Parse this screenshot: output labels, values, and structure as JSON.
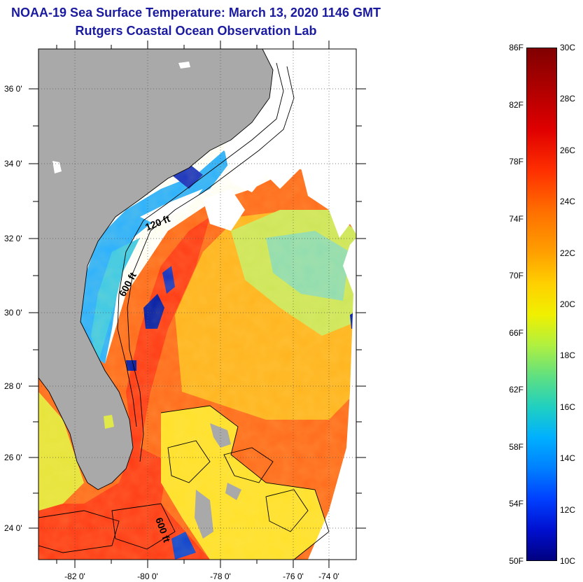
{
  "title": {
    "line1": "NOAA-19 Sea Surface Temperature:  March 13, 2020 1146 GMT",
    "line2": "Rutgers Coastal Ocean Observation Lab"
  },
  "map": {
    "lat_labels": [
      "36 0'",
      "34 0'",
      "32 0'",
      "30 0'",
      "28 0'",
      "26 0'",
      "24 0'"
    ],
    "lon_labels": [
      "-82 0'",
      "-80 0'",
      "-78 0'",
      "-76 0'",
      "-74 0'"
    ],
    "contour_labels": [
      "120 ft",
      "600 ft",
      "600 ft"
    ],
    "colors": {
      "land": "#a9a9a9",
      "cloud": "#ffffff",
      "warm": "#ff4a14",
      "mid": "#ffd21e",
      "cool": "#7fdc8c",
      "cold": "#00a0ff",
      "coldest": "#001aa8"
    }
  },
  "colorbar": {
    "fahrenheit": [
      "86F",
      "82F",
      "78F",
      "74F",
      "70F",
      "66F",
      "62F",
      "58F",
      "54F",
      "50F"
    ],
    "celsius": [
      "30C",
      "28C",
      "26C",
      "24C",
      "22C",
      "20C",
      "18C",
      "16C",
      "14C",
      "12C",
      "10C"
    ]
  }
}
